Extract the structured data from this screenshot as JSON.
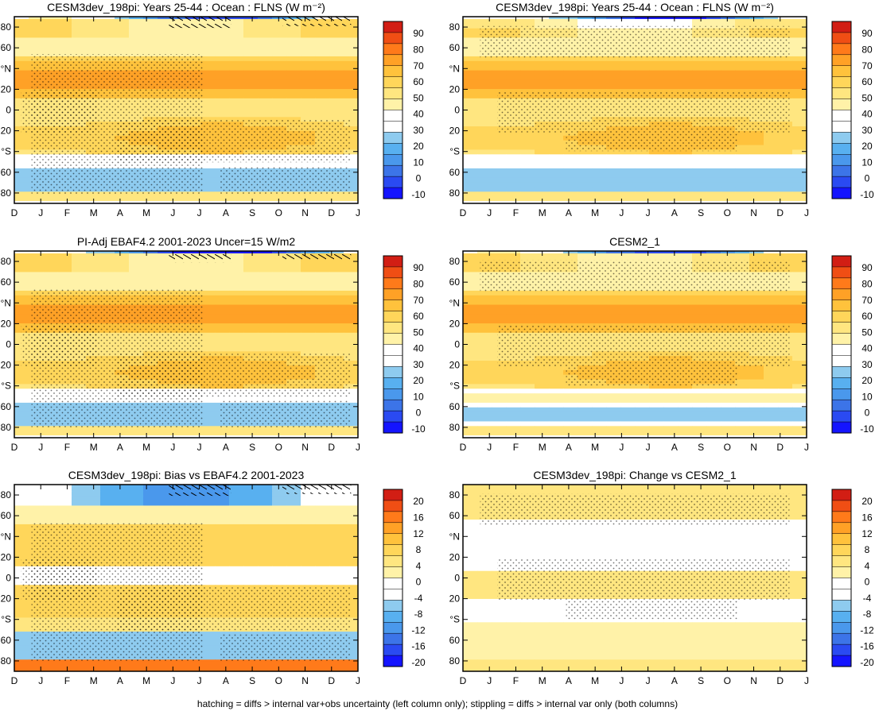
{
  "figure": {
    "footer": "hatching = diffs > internal var+obs uncertainty (left column only); stippling = diffs > internal var only (both columns)"
  },
  "colors": {
    "full_scale": [
      "#1414ff",
      "#2a4af2",
      "#3c74e8",
      "#4a98ec",
      "#58b0f0",
      "#8ecbef",
      "#ffffff",
      "#ffffff",
      "#fff2a8",
      "#ffe680",
      "#ffd65a",
      "#ffc23c",
      "#ffa126",
      "#ff7a1a",
      "#f04e14",
      "#d21e14"
    ],
    "diff_scale": [
      "#1414ff",
      "#2a4af2",
      "#3c74e8",
      "#4a98ec",
      "#58b0f0",
      "#8ecbef",
      "#ffffff",
      "#ffffff",
      "#fff2a8",
      "#ffe680",
      "#ffd65a",
      "#ffc23c",
      "#ffa126",
      "#ff7a1a",
      "#f04e14",
      "#d21e14"
    ],
    "hatch": "#000000"
  },
  "chart_data": [
    {
      "type": "heatmap",
      "title": "CESM3dev_198pi: Years 25-44 : Ocean : FLNS (W m⁻²)",
      "panel": "top-left",
      "x": [
        "D",
        "J",
        "F",
        "M",
        "A",
        "M",
        "J",
        "J",
        "A",
        "S",
        "O",
        "N",
        "D",
        "J"
      ],
      "y_tick_labels": [
        "80",
        "60",
        "°N",
        "20",
        "0",
        "20",
        "°S",
        "60",
        "80"
      ],
      "colorbar_labels": [
        "90",
        "80",
        "70",
        "60",
        "50",
        "40",
        "30",
        "20",
        "10",
        "0",
        "-10"
      ],
      "hatching": true,
      "stippling": true
    },
    {
      "type": "heatmap",
      "title": "CESM3dev_198pi: Years 25-44 : Ocean : FLNS (W m⁻²)",
      "panel": "top-right",
      "x": [
        "D",
        "J",
        "F",
        "M",
        "A",
        "M",
        "J",
        "J",
        "A",
        "S",
        "O",
        "N",
        "D",
        "J"
      ],
      "y_tick_labels": [
        "80",
        "60",
        "°N",
        "20",
        "0",
        "20",
        "°S",
        "60",
        "80"
      ],
      "colorbar_labels": [
        "90",
        "80",
        "70",
        "60",
        "50",
        "40",
        "30",
        "20",
        "10",
        "0",
        "-10"
      ],
      "hatching": false,
      "stippling": true
    },
    {
      "type": "heatmap",
      "title": "PI-Adj EBAF4.2 2001-2023 Uncer=15 W/m2",
      "panel": "middle-left",
      "x": [
        "D",
        "J",
        "F",
        "M",
        "A",
        "M",
        "J",
        "J",
        "A",
        "S",
        "O",
        "N",
        "D",
        "J"
      ],
      "y_tick_labels": [
        "80",
        "60",
        "°N",
        "20",
        "0",
        "20",
        "°S",
        "60",
        "80"
      ],
      "colorbar_labels": [
        "90",
        "80",
        "70",
        "60",
        "50",
        "40",
        "30",
        "20",
        "10",
        "0",
        "-10"
      ],
      "hatching": true,
      "stippling": true
    },
    {
      "type": "heatmap",
      "title": "CESM2_1",
      "panel": "middle-right",
      "x": [
        "D",
        "J",
        "F",
        "M",
        "A",
        "M",
        "J",
        "J",
        "A",
        "S",
        "O",
        "N",
        "D",
        "J"
      ],
      "y_tick_labels": [
        "80",
        "60",
        "°N",
        "20",
        "0",
        "20",
        "°S",
        "60",
        "80"
      ],
      "colorbar_labels": [
        "90",
        "80",
        "70",
        "60",
        "50",
        "40",
        "30",
        "20",
        "10",
        "0",
        "-10"
      ],
      "hatching": false,
      "stippling": true
    },
    {
      "type": "heatmap",
      "title": "CESM3dev_198pi: Bias vs EBAF4.2 2001-2023",
      "panel": "bottom-left",
      "x": [
        "D",
        "J",
        "F",
        "M",
        "A",
        "M",
        "J",
        "J",
        "A",
        "S",
        "O",
        "N",
        "D",
        "J"
      ],
      "y_tick_labels": [
        "80",
        "60",
        "°N",
        "20",
        "0",
        "20",
        "°S",
        "60",
        "80"
      ],
      "colorbar_labels": [
        "20",
        "16",
        "12",
        "8",
        "4",
        "0",
        "-4",
        "-8",
        "-12",
        "-16",
        "-20"
      ],
      "hatching": true,
      "stippling": true
    },
    {
      "type": "heatmap",
      "title": "CESM3dev_198pi: Change vs CESM2_1",
      "panel": "bottom-right",
      "x": [
        "D",
        "J",
        "F",
        "M",
        "A",
        "M",
        "J",
        "J",
        "A",
        "S",
        "O",
        "N",
        "D",
        "J"
      ],
      "y_tick_labels": [
        "80",
        "60",
        "°N",
        "20",
        "0",
        "20",
        "°S",
        "60",
        "80"
      ],
      "colorbar_labels": [
        "20",
        "16",
        "12",
        "8",
        "4",
        "0",
        "-4",
        "-8",
        "-12",
        "-16",
        "-20"
      ],
      "hatching": false,
      "stippling": true
    }
  ]
}
